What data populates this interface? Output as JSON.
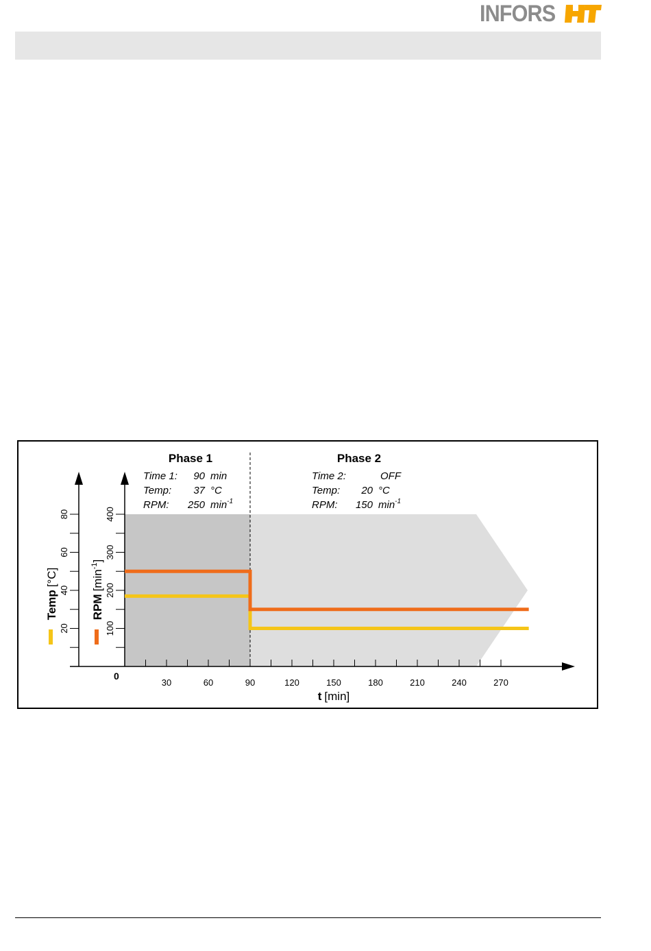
{
  "brand": {
    "name_text": "INFORS",
    "mark_text": "HT",
    "accent": "#f7a600",
    "gray": "#8c8c8c"
  },
  "colors": {
    "temp": "#f5c518",
    "rpm": "#ef6c1a",
    "phase1_bg": "#c6c6c6",
    "phase2_bg": "#dedede"
  },
  "phases": [
    {
      "title": "Phase 1",
      "rows": [
        {
          "label": "Time 1:",
          "value": "90",
          "unit": "min",
          "sup": ""
        },
        {
          "label": "Temp:",
          "value": "37",
          "unit": "°C",
          "sup": ""
        },
        {
          "label": "RPM:",
          "value": "250",
          "unit": "min",
          "sup": "-1"
        }
      ]
    },
    {
      "title": "Phase 2",
      "rows": [
        {
          "label": "Time 2:",
          "value": "OFF",
          "unit": "",
          "sup": ""
        },
        {
          "label": "Temp:",
          "value": "20",
          "unit": "°C",
          "sup": ""
        },
        {
          "label": "RPM:",
          "value": "150",
          "unit": "min",
          "sup": "-1"
        }
      ]
    }
  ],
  "chart_data": {
    "type": "line",
    "xlabel_bold": "t",
    "xlabel_unit": "[min]",
    "origin_label": "0",
    "xlim": [
      0,
      300
    ],
    "x_ticks": [
      30,
      60,
      90,
      120,
      150,
      180,
      210,
      240,
      270
    ],
    "x_minor_ticks": [
      15,
      45,
      75,
      105,
      135,
      165,
      195,
      225,
      255
    ],
    "temp_axis": {
      "label_bold": "Temp",
      "label_unit": "[°C]",
      "ylim": [
        0,
        80
      ],
      "ticks": [
        20,
        40,
        60,
        80
      ],
      "minor_ticks": [
        10,
        30,
        50,
        70
      ]
    },
    "rpm_axis": {
      "label_bold": "RPM",
      "label_unit": "[min",
      "label_sup": "-1",
      "label_close": "]",
      "ylim": [
        0,
        400
      ],
      "ticks": [
        100,
        200,
        300,
        400
      ],
      "minor_ticks": [
        50,
        150,
        250,
        350
      ]
    },
    "series": [
      {
        "name": "Temp",
        "axis": "temp",
        "x": [
          0,
          90,
          90,
          290
        ],
        "y": [
          37,
          37,
          20,
          20
        ]
      },
      {
        "name": "RPM",
        "axis": "rpm",
        "x": [
          0,
          90,
          90,
          290
        ],
        "y": [
          250,
          250,
          150,
          150
        ]
      }
    ],
    "phase_boundary_x": 90
  }
}
